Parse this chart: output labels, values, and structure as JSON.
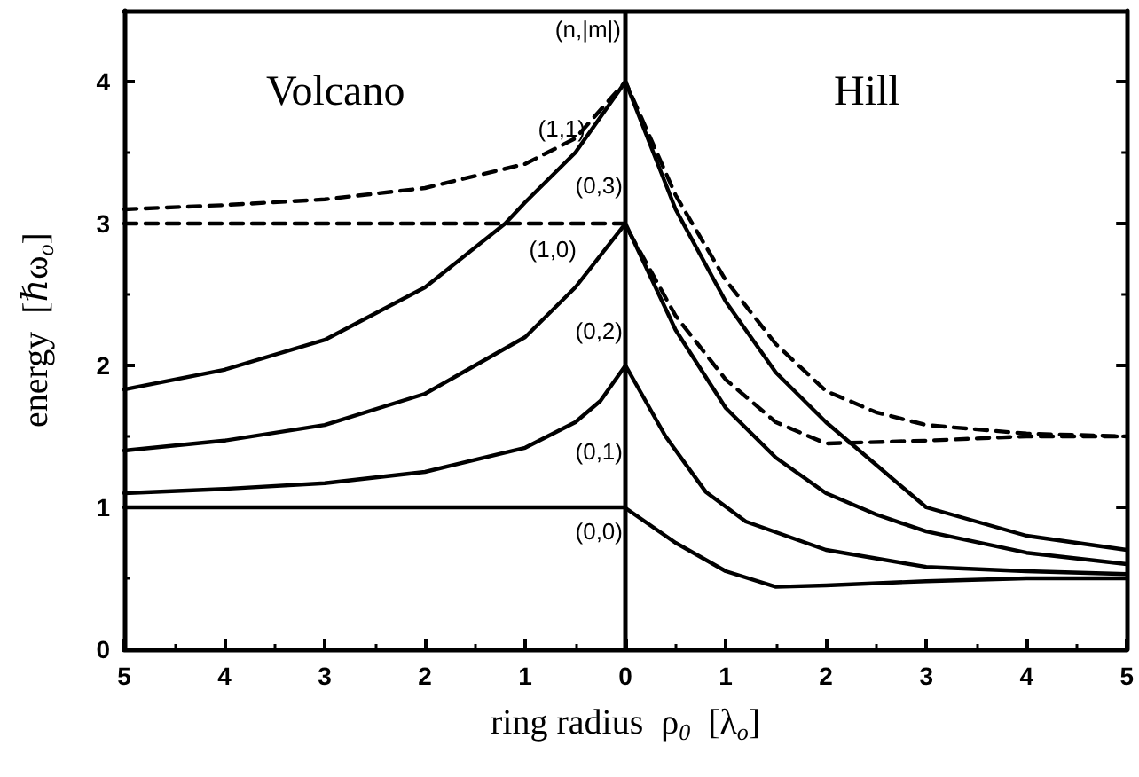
{
  "chart_data": {
    "type": "line",
    "xlabel": "ring radius  ρ$_{0}$  [λ$_{o}$]",
    "ylabel": "energy  [ℏω$_{o}$]",
    "xlim": [
      -5,
      5
    ],
    "xticks": [
      {
        "value": -5,
        "label": "5"
      },
      {
        "value": -4,
        "label": "4"
      },
      {
        "value": -3,
        "label": "3"
      },
      {
        "value": -2,
        "label": "2"
      },
      {
        "value": -1,
        "label": "1"
      },
      0,
      1,
      2,
      3,
      4,
      5
    ],
    "ylim": [
      0,
      4.5
    ],
    "yticks": [
      0,
      1,
      2,
      3,
      4
    ],
    "grid": false,
    "marker": "none",
    "ref_lines": [
      {
        "axis": "x",
        "value": 0,
        "color": "#000000",
        "line_style": "solid"
      }
    ],
    "series": [
      {
        "color": "#000000",
        "line_style": "solid",
        "x": [
          -5,
          -0.01,
          0,
          0.5,
          1,
          1.5,
          2,
          3,
          4,
          5
        ],
        "values": [
          1,
          1,
          1,
          0.75,
          0.55,
          0.44,
          0.45,
          0.48,
          0.5,
          0.5
        ]
      },
      {
        "color": "#000000",
        "line_style": "solid",
        "x": [
          -5,
          -4,
          -3,
          -2,
          -1,
          -0.5,
          -0.25,
          0,
          0.4,
          0.8,
          1.2,
          2,
          3,
          4,
          5
        ],
        "values": [
          1.1,
          1.13,
          1.17,
          1.25,
          1.42,
          1.6,
          1.75,
          2,
          1.5,
          1.11,
          0.9,
          0.7,
          0.58,
          0.55,
          0.53
        ]
      },
      {
        "color": "#000000",
        "line_style": "solid",
        "x": [
          -5,
          -4,
          -3,
          -2,
          -1,
          -0.5,
          0,
          0.5,
          1,
          1.5,
          2,
          2.5,
          3,
          4,
          5
        ],
        "values": [
          1.4,
          1.47,
          1.58,
          1.8,
          2.2,
          2.55,
          3,
          2.25,
          1.7,
          1.35,
          1.1,
          0.95,
          0.83,
          0.68,
          0.6
        ]
      },
      {
        "color": "#000000",
        "line_style": "solid",
        "x": [
          -5,
          -4,
          -3,
          -2,
          -1.2,
          -1,
          -0.5,
          0,
          0.5,
          1,
          1.5,
          2,
          2.5,
          3,
          4,
          5
        ],
        "values": [
          1.83,
          1.97,
          2.18,
          2.55,
          3.0,
          3.15,
          3.5,
          4,
          3.1,
          2.45,
          1.95,
          1.6,
          1.3,
          1.0,
          0.8,
          0.7
        ]
      },
      {
        "color": "#000000",
        "line_style": "dashed",
        "x": [
          -5,
          -4,
          -3,
          -2,
          -1,
          -0.5,
          0,
          0.5,
          1,
          1.5,
          2,
          2.5,
          3,
          4,
          5
        ],
        "values": [
          3.1,
          3.13,
          3.17,
          3.25,
          3.42,
          3.6,
          4,
          3.2,
          2.6,
          2.15,
          1.82,
          1.67,
          1.58,
          1.52,
          1.5
        ]
      },
      {
        "color": "#000000",
        "line_style": "dashed",
        "x": [
          -5,
          -0.01,
          0,
          0.5,
          1,
          1.5,
          2,
          3,
          4,
          5
        ],
        "values": [
          3,
          3,
          3,
          2.35,
          1.9,
          1.6,
          1.45,
          1.47,
          1.5,
          1.5
        ]
      }
    ],
    "annotations": [
      "Volcano",
      "Hill",
      "(n,|m|)",
      "(1,1)",
      "(0,3)",
      "(1,0)",
      "(0,2)",
      "(0,1)",
      "(0,0)"
    ]
  }
}
